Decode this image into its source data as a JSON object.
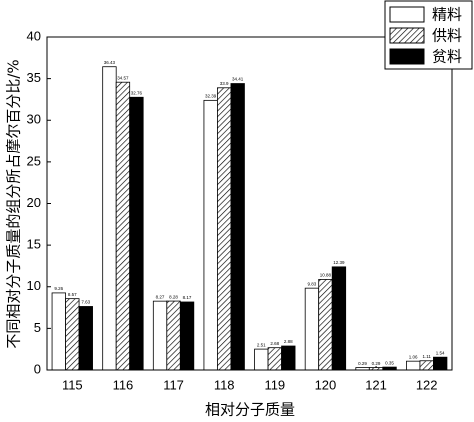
{
  "chart_data": {
    "type": "bar",
    "y_label": "不同相对分子质量的组分所占摩尔百分比/%",
    "x_label": "相对分子质量",
    "categories": [
      "115",
      "116",
      "117",
      "118",
      "119",
      "120",
      "121",
      "122"
    ],
    "series": [
      {
        "name": "精料",
        "color": "#ffffff",
        "hatch": false,
        "values": [
          9.26,
          36.43,
          8.27,
          32.39,
          2.51,
          9.83,
          0.29,
          1.06
        ]
      },
      {
        "name": "供料",
        "color": "#ffffff",
        "hatch": true,
        "values": [
          8.57,
          34.57,
          8.28,
          33.9,
          2.68,
          10.88,
          0.29,
          1.11
        ]
      },
      {
        "name": "贫料",
        "color": "#000000",
        "hatch": false,
        "values": [
          7.63,
          32.76,
          8.17,
          34.41,
          2.88,
          12.39,
          0.35,
          1.54
        ]
      }
    ],
    "ylim": [
      0,
      40
    ],
    "yticks": [
      0,
      5,
      10,
      15,
      20,
      25,
      30,
      35,
      40
    ],
    "legend": "top-right"
  }
}
